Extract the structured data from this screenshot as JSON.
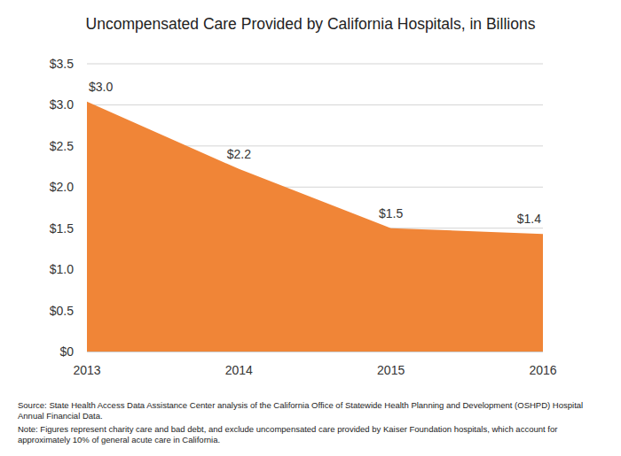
{
  "chart_data": {
    "type": "area",
    "title": "Uncompensated Care Provided by California Hospitals, in Billions",
    "categories": [
      "2013",
      "2014",
      "2015",
      "2016"
    ],
    "values": [
      3.04,
      2.22,
      1.5,
      1.43
    ],
    "value_labels": [
      "$3.0",
      "$2.2",
      "$1.5",
      "$1.4"
    ],
    "data_labels": true,
    "color": "#f08537",
    "ylim": [
      0,
      3.5
    ],
    "yticks": [
      {
        "value": 0,
        "label": "$0"
      },
      {
        "value": 0.5,
        "label": "$0.5"
      },
      {
        "value": 1,
        "label": "$1.0"
      },
      {
        "value": 1.5,
        "label": "$1.5"
      },
      {
        "value": 2,
        "label": "$2.0"
      },
      {
        "value": 2.5,
        "label": "$2.5"
      },
      {
        "value": 3,
        "label": "$3.0"
      },
      {
        "value": 3.5,
        "label": "$3.5"
      }
    ],
    "grid": true,
    "source": "Source: State Health Access Data Assistance Center analysis of the California Office of Statewide Health Planning and Development (OSHPD) Hospital Annual Financial Data.",
    "note": "Note: Figures represent charity care and bad debt, and exclude uncompensated care provided by Kaiser Foundation hospitals, which account for approximately 10% of general acute care in California."
  }
}
